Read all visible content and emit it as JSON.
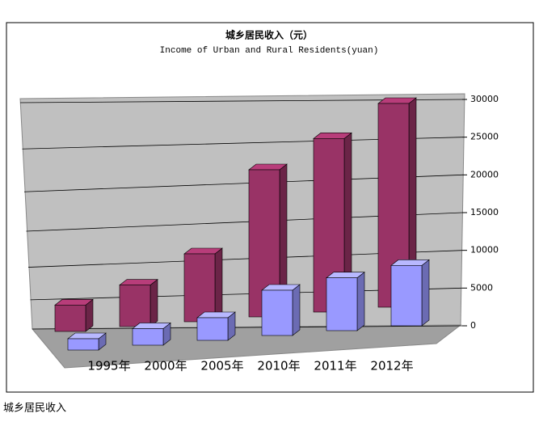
{
  "chart_data": {
    "type": "bar3d",
    "title": "城乡居民收入（元）",
    "subtitle": "Income of Urban and Rural Residents(yuan)",
    "categories": [
      "1995年",
      "2000年",
      "2005年",
      "2010年",
      "2011年",
      "2012年"
    ],
    "series": [
      {
        "color": "#993366",
        "values": [
          3500,
          5500,
          9000,
          19500,
          23000,
          27000
        ]
      },
      {
        "color": "#9999ff",
        "values": [
          1500,
          2200,
          3000,
          6000,
          7000,
          8000
        ]
      }
    ],
    "ylim": [
      0,
      30000
    ],
    "yticks": [
      0,
      5000,
      10000,
      15000,
      20000,
      25000,
      30000
    ],
    "grid": true
  },
  "caption": "城乡居民收入"
}
